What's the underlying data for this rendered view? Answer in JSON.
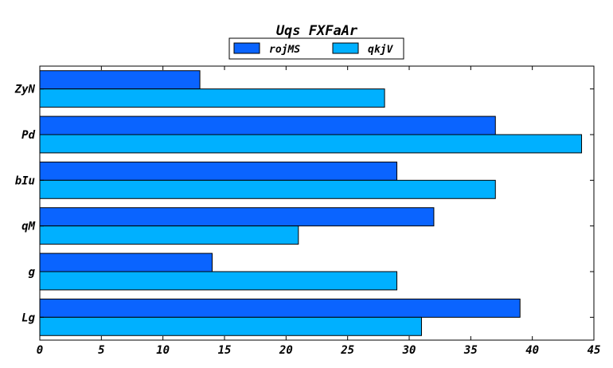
{
  "chart_data": {
    "type": "bar",
    "orientation": "horizontal",
    "title": "Uqs FXFaAr",
    "xlabel": "",
    "ylabel": "",
    "categories": [
      "ZyN",
      "Pd",
      "bIu",
      "qM",
      "g",
      "Lg"
    ],
    "series": [
      {
        "name": "rojMS",
        "color": "#0a64ff",
        "values": [
          13,
          37,
          29,
          32,
          14,
          39
        ]
      },
      {
        "name": "qkjV",
        "color": "#00b0ff",
        "values": [
          28,
          44,
          37,
          21,
          29,
          31
        ]
      }
    ],
    "xlim": [
      0,
      45
    ],
    "xticks": [
      0,
      5,
      10,
      15,
      20,
      25,
      30,
      35,
      40,
      45
    ],
    "grid": false,
    "legend_position": "top-center"
  }
}
